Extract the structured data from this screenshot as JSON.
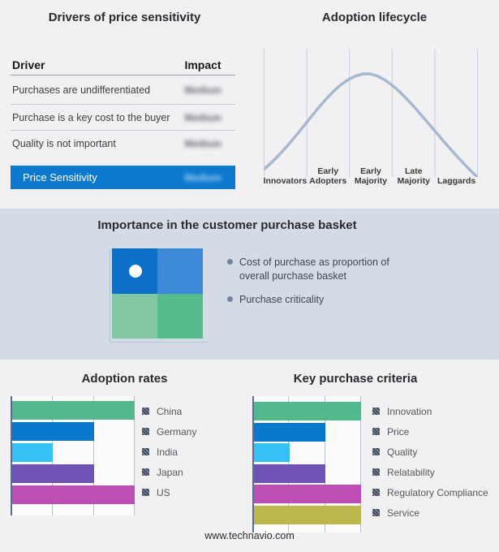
{
  "drivers_panel": {
    "title": "Drivers of price sensitivity",
    "table": {
      "col_driver": "Driver",
      "col_impact": "Impact",
      "rows": [
        {
          "driver": "Purchases are undifferentiated",
          "impact": "Medium"
        },
        {
          "driver": "Purchase is a key cost to the buyer",
          "impact": "Medium"
        },
        {
          "driver": "Quality is not important",
          "impact": "Medium"
        }
      ],
      "highlight": {
        "driver": "Price Sensitivity",
        "impact": "Medium"
      },
      "highlight_color": "#0c79cf"
    }
  },
  "lifecycle_panel": {
    "title": "Adoption lifecycle",
    "stages": [
      "Innovators",
      "Early Adopters",
      "Early Majority",
      "Late Majority",
      "Laggards"
    ],
    "curve_color": "#a8b8ce"
  },
  "basket_band": {
    "title": "Importance in the customer purchase basket",
    "bullets": [
      "Cost of purchase as proportion of overall purchase basket",
      "Purchase criticality"
    ],
    "quadrant_colors": {
      "top_left": "#0d70c7",
      "top_right": "#3c8ad8",
      "bottom_left": "#82c6a4",
      "bottom_right": "#57bc8c"
    },
    "background": "#d3dce6"
  },
  "adoption_chart": {
    "title": "Adoption rates",
    "max": 3,
    "items": [
      {
        "label": "China",
        "value": 3,
        "color": "#52b98c"
      },
      {
        "label": "Germany",
        "value": 2,
        "color": "#0878cd"
      },
      {
        "label": "India",
        "value": 1,
        "color": "#36c1f5"
      },
      {
        "label": "Japan",
        "value": 2,
        "color": "#6e52b4"
      },
      {
        "label": "US",
        "value": 3,
        "color": "#be4eb4"
      }
    ]
  },
  "criteria_chart": {
    "title": "Key purchase criteria",
    "max": 3,
    "items": [
      {
        "label": "Innovation",
        "value": 3,
        "color": "#52b98c"
      },
      {
        "label": "Price",
        "value": 2,
        "color": "#0878cd"
      },
      {
        "label": "Quality",
        "value": 1,
        "color": "#36c1f5"
      },
      {
        "label": "Relatability",
        "value": 2,
        "color": "#6e52b4"
      },
      {
        "label": "Regulatory Compliance",
        "value": 3,
        "color": "#be4eb4"
      },
      {
        "label": "Service",
        "value": 3,
        "color": "#bdb84b"
      }
    ]
  },
  "footer": {
    "url": "www.technavio.com"
  },
  "chart_data": [
    {
      "type": "table",
      "title": "Drivers of price sensitivity",
      "columns": [
        "Driver",
        "Impact"
      ],
      "rows": [
        [
          "Purchases are undifferentiated",
          "Medium"
        ],
        [
          "Purchase is a key cost to the buyer",
          "Medium"
        ],
        [
          "Quality is not important",
          "Medium"
        ],
        [
          "Price Sensitivity",
          "Medium"
        ]
      ],
      "note": "Impact values appear blurred/redacted; last row highlighted blue"
    },
    {
      "type": "line",
      "title": "Adoption lifecycle",
      "categories": [
        "Innovators",
        "Early Adopters",
        "Early Majority",
        "Late Majority",
        "Laggards"
      ],
      "description": "Bell-shaped adoption curve peaking over Early Majority",
      "grid": "vertical segment dividers only",
      "legend_position": "none"
    },
    {
      "type": "bar",
      "title": "Adoption rates",
      "orientation": "horizontal",
      "categories": [
        "China",
        "Germany",
        "India",
        "Japan",
        "US"
      ],
      "values": [
        3,
        2,
        1,
        2,
        3
      ],
      "xlabel": "",
      "ylabel": "",
      "xlim": [
        0,
        3
      ],
      "grid": "vertical gridlines at each unit",
      "legend_position": "right"
    },
    {
      "type": "bar",
      "title": "Key purchase criteria",
      "orientation": "horizontal",
      "categories": [
        "Innovation",
        "Price",
        "Quality",
        "Relatability",
        "Regulatory Compliance",
        "Service"
      ],
      "values": [
        3,
        2,
        1,
        2,
        3,
        3
      ],
      "xlabel": "",
      "ylabel": "",
      "xlim": [
        0,
        3
      ],
      "grid": "vertical gridlines at each unit",
      "legend_position": "right"
    }
  ]
}
